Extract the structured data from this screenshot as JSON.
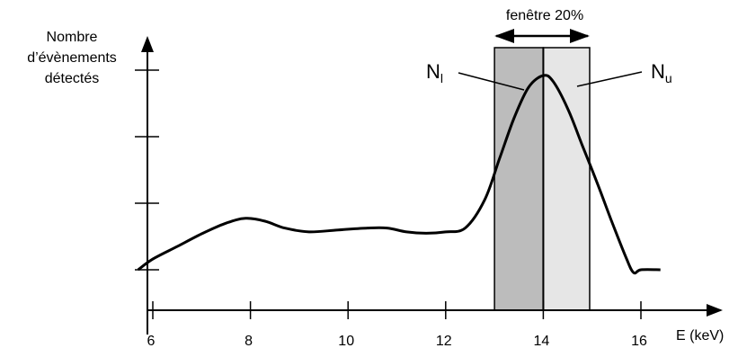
{
  "chart_data": {
    "type": "line",
    "title": "",
    "ylabel_lines": [
      "Nombre",
      "d’évènements",
      "détectés"
    ],
    "xlabel": "E (keV)",
    "xlim": [
      5.7,
      16.4
    ],
    "ylim": [
      0,
      100
    ],
    "x_ticks": [
      6,
      8,
      10,
      12,
      14,
      16
    ],
    "y_tick_count": 4,
    "series": [
      {
        "color": "#000000",
        "x": [
          5.7,
          6.0,
          6.5,
          7.0,
          7.5,
          7.9,
          8.3,
          8.7,
          9.2,
          9.8,
          10.4,
          10.8,
          11.2,
          11.6,
          12.0,
          12.4,
          12.8,
          13.1,
          13.4,
          13.7,
          14.0,
          14.2,
          14.5,
          14.8,
          15.1,
          15.4,
          15.7,
          15.85,
          16.0,
          16.4
        ],
        "y": [
          0,
          5.5,
          12,
          18.5,
          24,
          26.5,
          25,
          21.5,
          19.5,
          20.5,
          21.5,
          21.5,
          19.5,
          18.8,
          19.5,
          21.5,
          36,
          57,
          78,
          94,
          100,
          97,
          83,
          64,
          45,
          25,
          6,
          -1.5,
          0,
          0
        ]
      }
    ],
    "window": {
      "label": "fenêtre 20%",
      "x_start": 13.0,
      "x_center": 14.0,
      "x_end": 14.95,
      "lower_color": "#bcbcbc",
      "upper_color": "#e6e6e6",
      "lower_label": "N",
      "lower_sub": "l",
      "upper_label": "N",
      "upper_sub": "u"
    }
  }
}
